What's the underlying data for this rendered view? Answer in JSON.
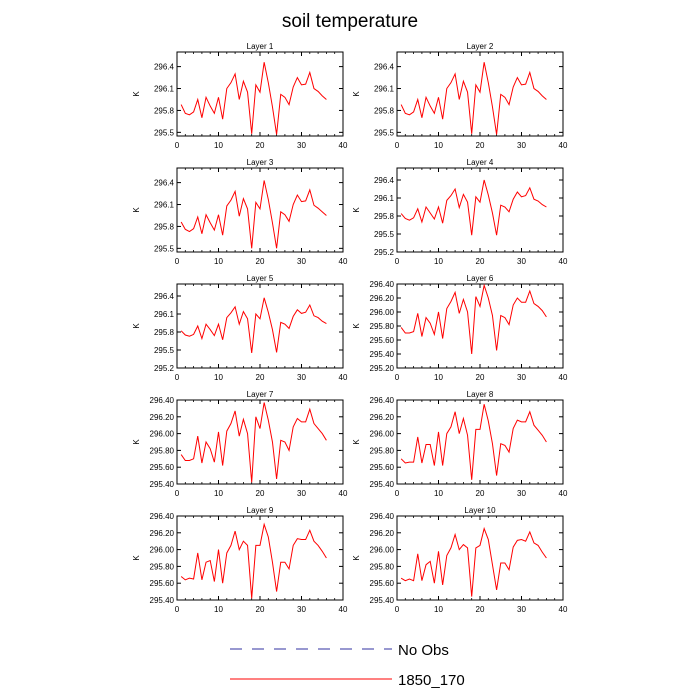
{
  "chart_data": {
    "type": "line",
    "title": "soil temperature",
    "ylabel": "K",
    "xlim": [
      0,
      40
    ],
    "xticks": [
      0,
      10,
      20,
      30,
      40
    ],
    "legend": {
      "placement": "bottom-center",
      "entries": [
        {
          "label": "No Obs",
          "color": "#3030a0",
          "style": "dashed",
          "has_data": false
        },
        {
          "label": "1850_170",
          "color": "#ff0000",
          "style": "solid",
          "has_data": true
        }
      ]
    },
    "x": [
      1,
      2,
      3,
      4,
      5,
      6,
      7,
      8,
      9,
      10,
      11,
      12,
      13,
      14,
      15,
      16,
      17,
      18,
      19,
      20,
      21,
      22,
      23,
      24,
      25,
      26,
      27,
      28,
      29,
      30,
      31,
      32,
      33,
      34,
      35,
      36
    ],
    "panels": [
      {
        "title": "Layer 1",
        "ylim": [
          295.45,
          296.6
        ],
        "yticks": [
          295.5,
          295.8,
          296.1,
          296.4
        ],
        "ytick_labels": [
          "295.5",
          "295.8",
          "296.1",
          "296.4"
        ],
        "series": [
          {
            "name": "1850_170",
            "color": "#ff0000",
            "values": [
              295.88,
              295.76,
              295.74,
              295.78,
              295.95,
              295.7,
              295.98,
              295.86,
              295.76,
              295.98,
              295.68,
              296.1,
              296.18,
              296.3,
              295.95,
              296.2,
              296.05,
              295.48,
              296.15,
              296.05,
              296.46,
              296.18,
              295.85,
              295.47,
              296.02,
              295.98,
              295.88,
              296.12,
              296.25,
              296.15,
              296.16,
              296.32,
              296.1,
              296.06,
              296.0,
              295.95
            ]
          }
        ]
      },
      {
        "title": "Layer 2",
        "ylim": [
          295.45,
          296.6
        ],
        "yticks": [
          295.5,
          295.8,
          296.1,
          296.4
        ],
        "ytick_labels": [
          "295.5",
          "295.8",
          "296.1",
          "296.4"
        ],
        "series": [
          {
            "name": "1850_170",
            "color": "#ff0000",
            "values": [
              295.88,
              295.76,
              295.74,
              295.78,
              295.95,
              295.7,
              295.98,
              295.86,
              295.76,
              295.98,
              295.68,
              296.1,
              296.18,
              296.3,
              295.95,
              296.2,
              296.05,
              295.48,
              296.15,
              296.05,
              296.46,
              296.18,
              295.85,
              295.47,
              296.02,
              295.98,
              295.88,
              296.12,
              296.25,
              296.15,
              296.16,
              296.32,
              296.1,
              296.06,
              296.0,
              295.95
            ]
          }
        ]
      },
      {
        "title": "Layer 3",
        "ylim": [
          295.45,
          296.6
        ],
        "yticks": [
          295.5,
          295.8,
          296.1,
          296.4
        ],
        "ytick_labels": [
          "295.5",
          "295.8",
          "296.1",
          "296.4"
        ],
        "series": [
          {
            "name": "1850_170",
            "color": "#ff0000",
            "values": [
              295.86,
              295.76,
              295.73,
              295.77,
              295.93,
              295.7,
              295.96,
              295.85,
              295.75,
              295.96,
              295.68,
              296.08,
              296.16,
              296.28,
              295.94,
              296.18,
              296.04,
              295.5,
              296.13,
              296.04,
              296.43,
              296.17,
              295.85,
              295.5,
              296.0,
              295.96,
              295.87,
              296.1,
              296.23,
              296.14,
              296.15,
              296.3,
              296.09,
              296.05,
              296.0,
              295.95
            ]
          }
        ]
      },
      {
        "title": "Layer 4",
        "ylim": [
          295.2,
          296.6
        ],
        "yticks": [
          295.2,
          295.5,
          295.8,
          296.1,
          296.4
        ],
        "ytick_labels": [
          "295.2",
          "295.5",
          "295.8",
          "296.1",
          "296.4"
        ],
        "series": [
          {
            "name": "1850_170",
            "color": "#ff0000",
            "values": [
              295.84,
              295.76,
              295.73,
              295.77,
              295.92,
              295.7,
              295.95,
              295.85,
              295.75,
              295.95,
              295.68,
              296.06,
              296.14,
              296.25,
              295.94,
              296.16,
              296.03,
              295.48,
              296.12,
              296.03,
              296.4,
              296.15,
              295.85,
              295.48,
              295.98,
              295.95,
              295.87,
              296.08,
              296.2,
              296.12,
              296.14,
              296.27,
              296.08,
              296.05,
              295.99,
              295.95
            ]
          }
        ]
      },
      {
        "title": "Layer 5",
        "ylim": [
          295.2,
          296.6
        ],
        "yticks": [
          295.2,
          295.5,
          295.8,
          296.1,
          296.4
        ],
        "ytick_labels": [
          "295.2",
          "295.5",
          "295.8",
          "296.1",
          "296.4"
        ],
        "series": [
          {
            "name": "1850_170",
            "color": "#ff0000",
            "values": [
              295.82,
              295.75,
              295.73,
              295.76,
              295.9,
              295.69,
              295.93,
              295.84,
              295.74,
              295.93,
              295.67,
              296.04,
              296.12,
              296.22,
              295.93,
              296.14,
              296.02,
              295.45,
              296.1,
              296.02,
              296.37,
              296.13,
              295.84,
              295.46,
              295.96,
              295.93,
              295.86,
              296.06,
              296.17,
              296.11,
              296.13,
              296.25,
              296.07,
              296.04,
              295.98,
              295.94
            ]
          }
        ]
      },
      {
        "title": "Layer 6",
        "ylim": [
          295.2,
          296.4
        ],
        "yticks": [
          295.2,
          295.4,
          295.6,
          295.8,
          296.0,
          296.2,
          296.4
        ],
        "ytick_labels": [
          "295.20",
          "295.40",
          "295.60",
          "295.80",
          "296.00",
          "296.20",
          "296.40"
        ],
        "series": [
          {
            "name": "1850_170",
            "color": "#ff0000",
            "values": [
              295.78,
              295.7,
              295.7,
              295.72,
              295.98,
              295.65,
              295.92,
              295.84,
              295.68,
              296.0,
              295.62,
              296.05,
              296.15,
              296.28,
              295.98,
              296.18,
              296.0,
              295.4,
              296.22,
              296.08,
              296.38,
              296.2,
              295.95,
              295.45,
              295.95,
              295.92,
              295.82,
              296.1,
              296.2,
              296.14,
              296.14,
              296.3,
              296.12,
              296.08,
              296.02,
              295.93
            ]
          }
        ]
      },
      {
        "title": "Layer 7",
        "ylim": [
          295.4,
          296.4
        ],
        "yticks": [
          295.4,
          295.6,
          295.8,
          296.0,
          296.2,
          296.4
        ],
        "ytick_labels": [
          "295.40",
          "295.60",
          "295.80",
          "296.00",
          "296.20",
          "296.40"
        ],
        "series": [
          {
            "name": "1850_170",
            "color": "#ff0000",
            "values": [
              295.75,
              295.68,
              295.68,
              295.7,
              295.97,
              295.65,
              295.9,
              295.82,
              295.66,
              296.02,
              295.62,
              296.03,
              296.12,
              296.27,
              295.97,
              296.17,
              296.0,
              295.42,
              296.2,
              296.06,
              296.37,
              296.16,
              295.9,
              295.46,
              295.92,
              295.9,
              295.8,
              296.08,
              296.18,
              296.14,
              296.14,
              296.29,
              296.12,
              296.06,
              296.0,
              295.92
            ]
          }
        ]
      },
      {
        "title": "Layer 8",
        "ylim": [
          295.4,
          296.4
        ],
        "yticks": [
          295.4,
          295.6,
          295.8,
          296.0,
          296.2,
          296.4
        ],
        "ytick_labels": [
          "295.40",
          "295.60",
          "295.80",
          "296.00",
          "296.20",
          "296.40"
        ],
        "series": [
          {
            "name": "1850_170",
            "color": "#ff0000",
            "values": [
              295.7,
              295.65,
              295.66,
              295.66,
              295.96,
              295.65,
              295.87,
              295.87,
              295.62,
              296.02,
              295.62,
              296.0,
              296.08,
              296.26,
              296.0,
              296.18,
              295.98,
              295.45,
              296.05,
              296.05,
              296.35,
              296.15,
              295.88,
              295.5,
              295.88,
              295.86,
              295.78,
              296.06,
              296.16,
              296.14,
              296.14,
              296.26,
              296.1,
              296.04,
              295.98,
              295.9
            ]
          }
        ]
      },
      {
        "title": "Layer 9",
        "ylim": [
          295.4,
          296.4
        ],
        "yticks": [
          295.4,
          295.6,
          295.8,
          296.0,
          296.2,
          296.4
        ],
        "ytick_labels": [
          "295.40",
          "295.60",
          "295.80",
          "296.00",
          "296.20",
          "296.40"
        ],
        "series": [
          {
            "name": "1850_170",
            "color": "#ff0000",
            "values": [
              295.68,
              295.64,
              295.66,
              295.65,
              295.96,
              295.64,
              295.85,
              295.87,
              295.62,
              296.0,
              295.6,
              295.96,
              296.05,
              296.22,
              296.0,
              296.1,
              296.05,
              295.42,
              296.05,
              296.05,
              296.3,
              296.15,
              295.85,
              295.5,
              295.85,
              295.85,
              295.77,
              296.05,
              296.13,
              296.12,
              296.12,
              296.23,
              296.1,
              296.05,
              295.98,
              295.9
            ]
          }
        ]
      },
      {
        "title": "Layer 10",
        "ylim": [
          295.4,
          296.4
        ],
        "yticks": [
          295.4,
          295.6,
          295.8,
          296.0,
          296.2,
          296.4
        ],
        "ytick_labels": [
          "295.40",
          "295.60",
          "295.80",
          "296.00",
          "296.20",
          "296.40"
        ],
        "series": [
          {
            "name": "1850_170",
            "color": "#ff0000",
            "values": [
              295.66,
              295.63,
              295.65,
              295.63,
              295.95,
              295.63,
              295.82,
              295.86,
              295.6,
              295.98,
              295.58,
              295.93,
              296.02,
              296.18,
              296.0,
              296.06,
              296.02,
              295.44,
              296.02,
              296.05,
              296.25,
              296.12,
              295.82,
              295.52,
              295.84,
              295.84,
              295.76,
              296.03,
              296.11,
              296.12,
              296.1,
              296.21,
              296.08,
              296.05,
              295.97,
              295.9
            ]
          }
        ]
      }
    ]
  }
}
